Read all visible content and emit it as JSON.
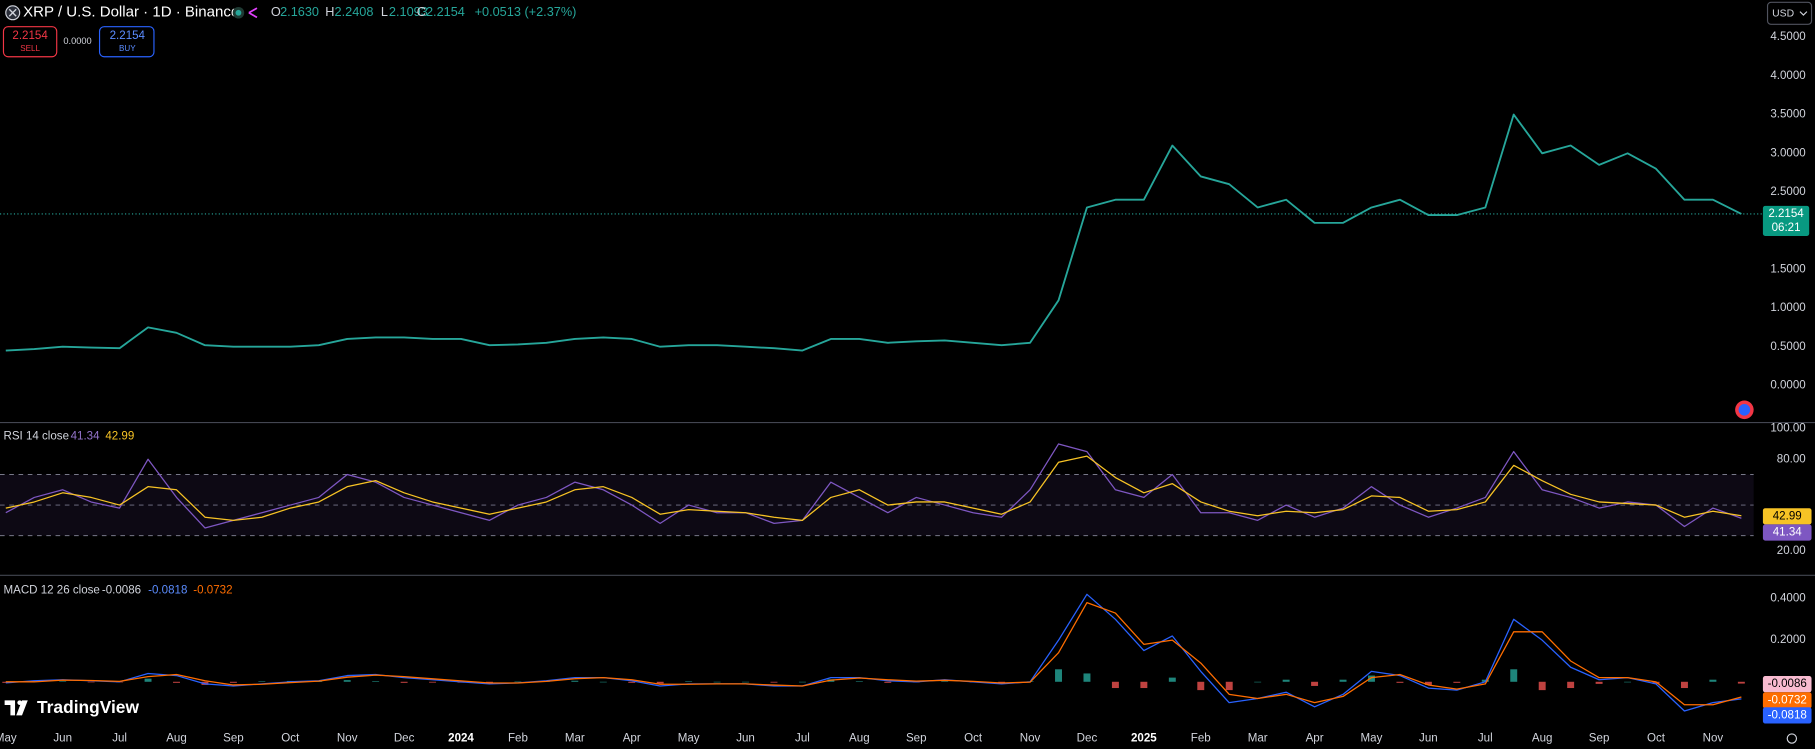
{
  "header": {
    "symbol": "XRP / U.S. Dollar · 1D · Binance",
    "open_label": "O",
    "open": "2.1630",
    "high_label": "H",
    "high": "2.2408",
    "low_label": "L",
    "low": "2.1093",
    "close_label": "C",
    "close": "2.2154",
    "change": "+0.0513 (+2.37%)",
    "sell_price": "2.2154",
    "sell": "SELL",
    "spread": "0.0000",
    "buy_price": "2.2154",
    "buy": "BUY",
    "currency": "USD",
    "countdown": "06:21",
    "logo": "TradingView"
  },
  "chart_data": [
    {
      "type": "line",
      "ylim": [
        -0.48,
        4.98
      ],
      "yticks": [
        {
          "value": 0,
          "label": "0.0000"
        },
        {
          "value": 0.5,
          "label": "0.5000"
        },
        {
          "value": 1,
          "label": "1.0000"
        },
        {
          "value": 1.5,
          "label": "1.5000"
        },
        {
          "value": 2.5,
          "label": "2.5000"
        },
        {
          "value": 3,
          "label": "3.0000"
        },
        {
          "value": 3.5,
          "label": "3.5000"
        },
        {
          "value": 4,
          "label": "4.0000"
        },
        {
          "value": 4.5,
          "label": "4.5000"
        }
      ],
      "series": [
        {
          "color": "#26a69a",
          "values": [
            0.45,
            0.47,
            0.5,
            0.49,
            0.48,
            0.75,
            0.68,
            0.52,
            0.5,
            0.5,
            0.5,
            0.52,
            0.6,
            0.62,
            0.62,
            0.6,
            0.6,
            0.52,
            0.53,
            0.55,
            0.6,
            0.62,
            0.6,
            0.5,
            0.52,
            0.52,
            0.5,
            0.48,
            0.45,
            0.6,
            0.6,
            0.55,
            0.57,
            0.58,
            0.55,
            0.52,
            0.55,
            1.1,
            2.3,
            2.4,
            2.4,
            3.1,
            2.7,
            2.6,
            2.3,
            2.4,
            2.1,
            2.1,
            2.3,
            2.4,
            2.2,
            2.2,
            2.3,
            3.5,
            3.0,
            3.1,
            2.85,
            3.0,
            2.8,
            2.4,
            2.4,
            2.2154
          ]
        }
      ]
    },
    {
      "type": "line",
      "title": "RSI 14 close",
      "ylim": [
        4,
        104
      ],
      "yticks": [
        {
          "value": 20,
          "label": "20.00"
        },
        {
          "value": 80,
          "label": "80.00"
        },
        {
          "value": 100,
          "label": "100.00"
        }
      ],
      "levels": [
        70,
        50,
        30
      ],
      "series": [
        {
          "color": "#7e57c2",
          "values": [
            45,
            55,
            60,
            52,
            48,
            80,
            55,
            35,
            40,
            45,
            50,
            55,
            70,
            65,
            55,
            50,
            45,
            40,
            50,
            55,
            65,
            60,
            50,
            38,
            50,
            45,
            45,
            38,
            40,
            65,
            55,
            45,
            55,
            50,
            45,
            42,
            60,
            90,
            85,
            60,
            55,
            70,
            45,
            45,
            40,
            50,
            42,
            48,
            62,
            50,
            42,
            48,
            55,
            85,
            60,
            55,
            48,
            52,
            50,
            36,
            48,
            41.34
          ]
        },
        {
          "color": "#f7c325",
          "values": [
            48,
            52,
            58,
            55,
            50,
            62,
            60,
            42,
            40,
            42,
            48,
            52,
            62,
            66,
            58,
            52,
            48,
            44,
            48,
            52,
            60,
            62,
            55,
            44,
            47,
            46,
            45,
            42,
            40,
            55,
            60,
            50,
            52,
            52,
            48,
            44,
            52,
            78,
            82,
            68,
            58,
            64,
            52,
            46,
            43,
            46,
            45,
            47,
            56,
            55,
            46,
            47,
            52,
            76,
            66,
            57,
            52,
            51,
            50,
            42,
            46,
            42.99
          ]
        }
      ]
    },
    {
      "type": "line",
      "title": "MACD 12 26 close",
      "ylim": [
        -0.228,
        0.511
      ],
      "yticks": [
        {
          "value": 0.2,
          "label": "0.2000"
        },
        {
          "value": 0.4,
          "label": "0.4000"
        }
      ],
      "categories": [
        "May",
        null,
        "Jun",
        null,
        "Jul",
        null,
        "Aug",
        null,
        "Sep",
        null,
        "Oct",
        null,
        "Nov",
        null,
        "Dec",
        null,
        "2024",
        null,
        "Feb",
        null,
        "Mar",
        null,
        "Apr",
        null,
        "May",
        null,
        "Jun",
        null,
        "Jul",
        null,
        "Aug",
        null,
        "Sep",
        null,
        "Oct",
        null,
        "Nov",
        null,
        "Dec",
        null,
        "2025",
        null,
        "Feb",
        null,
        "Mar",
        null,
        "Apr",
        null,
        "May",
        null,
        "Jun",
        null,
        "Jul",
        null,
        "Aug",
        null,
        "Sep",
        null,
        "Oct",
        null,
        "Nov",
        null
      ],
      "series": [
        {
          "type": "bar",
          "color": "#26a69a",
          "negative_color": "#ef5350",
          "values": [
            -0.005,
            0.005,
            0.002,
            -0.001,
            -0.002,
            0.015,
            -0.005,
            -0.015,
            -0.005,
            0.002,
            0.004,
            0.002,
            0.008,
            0.003,
            -0.005,
            -0.004,
            -0.004,
            -0.004,
            0.001,
            0.003,
            0.005,
            0,
            -0.005,
            -0.008,
            0.002,
            0,
            0,
            -0.004,
            0,
            0.012,
            0.002,
            -0.005,
            -0.003,
            0.003,
            -0.002,
            -0.004,
            0.002,
            0.06,
            0.04,
            -0.03,
            -0.03,
            0.02,
            -0.04,
            -0.04,
            0,
            0.01,
            -0.02,
            0.01,
            0.03,
            -0.005,
            -0.015,
            -0.005,
            0.01,
            0.06,
            -0.04,
            -0.03,
            -0.01,
            0,
            -0.01,
            -0.03,
            0.01,
            -0.0086
          ]
        },
        {
          "color": "#2962ff",
          "values": [
            -0.005,
            0.005,
            0.01,
            0.005,
            0,
            0.04,
            0.03,
            -0.01,
            -0.02,
            -0.01,
            0,
            0.005,
            0.03,
            0.035,
            0.02,
            0.01,
            0,
            -0.01,
            -0.005,
            0.005,
            0.02,
            0.02,
            0.005,
            -0.02,
            -0.01,
            -0.01,
            -0.01,
            -0.02,
            -0.02,
            0.02,
            0.02,
            0.005,
            0,
            0.01,
            0,
            -0.01,
            0,
            0.2,
            0.42,
            0.3,
            0.15,
            0.22,
            0.05,
            -0.1,
            -0.08,
            -0.05,
            -0.12,
            -0.06,
            0.05,
            0.03,
            -0.03,
            -0.04,
            0,
            0.3,
            0.2,
            0.07,
            0.01,
            0.02,
            -0.01,
            -0.14,
            -0.1,
            -0.0818
          ]
        },
        {
          "color": "#ff6d00",
          "values": [
            0,
            0,
            0.008,
            0.006,
            0.002,
            0.025,
            0.035,
            0.005,
            -0.015,
            -0.012,
            -0.004,
            0.003,
            0.022,
            0.032,
            0.025,
            0.014,
            0.004,
            -0.006,
            -0.006,
            0.002,
            0.015,
            0.02,
            0.01,
            -0.012,
            -0.012,
            -0.01,
            -0.01,
            -0.016,
            -0.02,
            0.008,
            0.018,
            0.01,
            0.003,
            0.007,
            0.002,
            -0.006,
            -0.002,
            0.14,
            0.38,
            0.33,
            0.18,
            0.2,
            0.09,
            -0.06,
            -0.08,
            -0.06,
            -0.1,
            -0.07,
            0.02,
            0.035,
            -0.015,
            -0.035,
            -0.01,
            0.24,
            0.24,
            0.1,
            0.02,
            0.02,
            0,
            -0.11,
            -0.11,
            -0.0732
          ]
        }
      ]
    }
  ]
}
